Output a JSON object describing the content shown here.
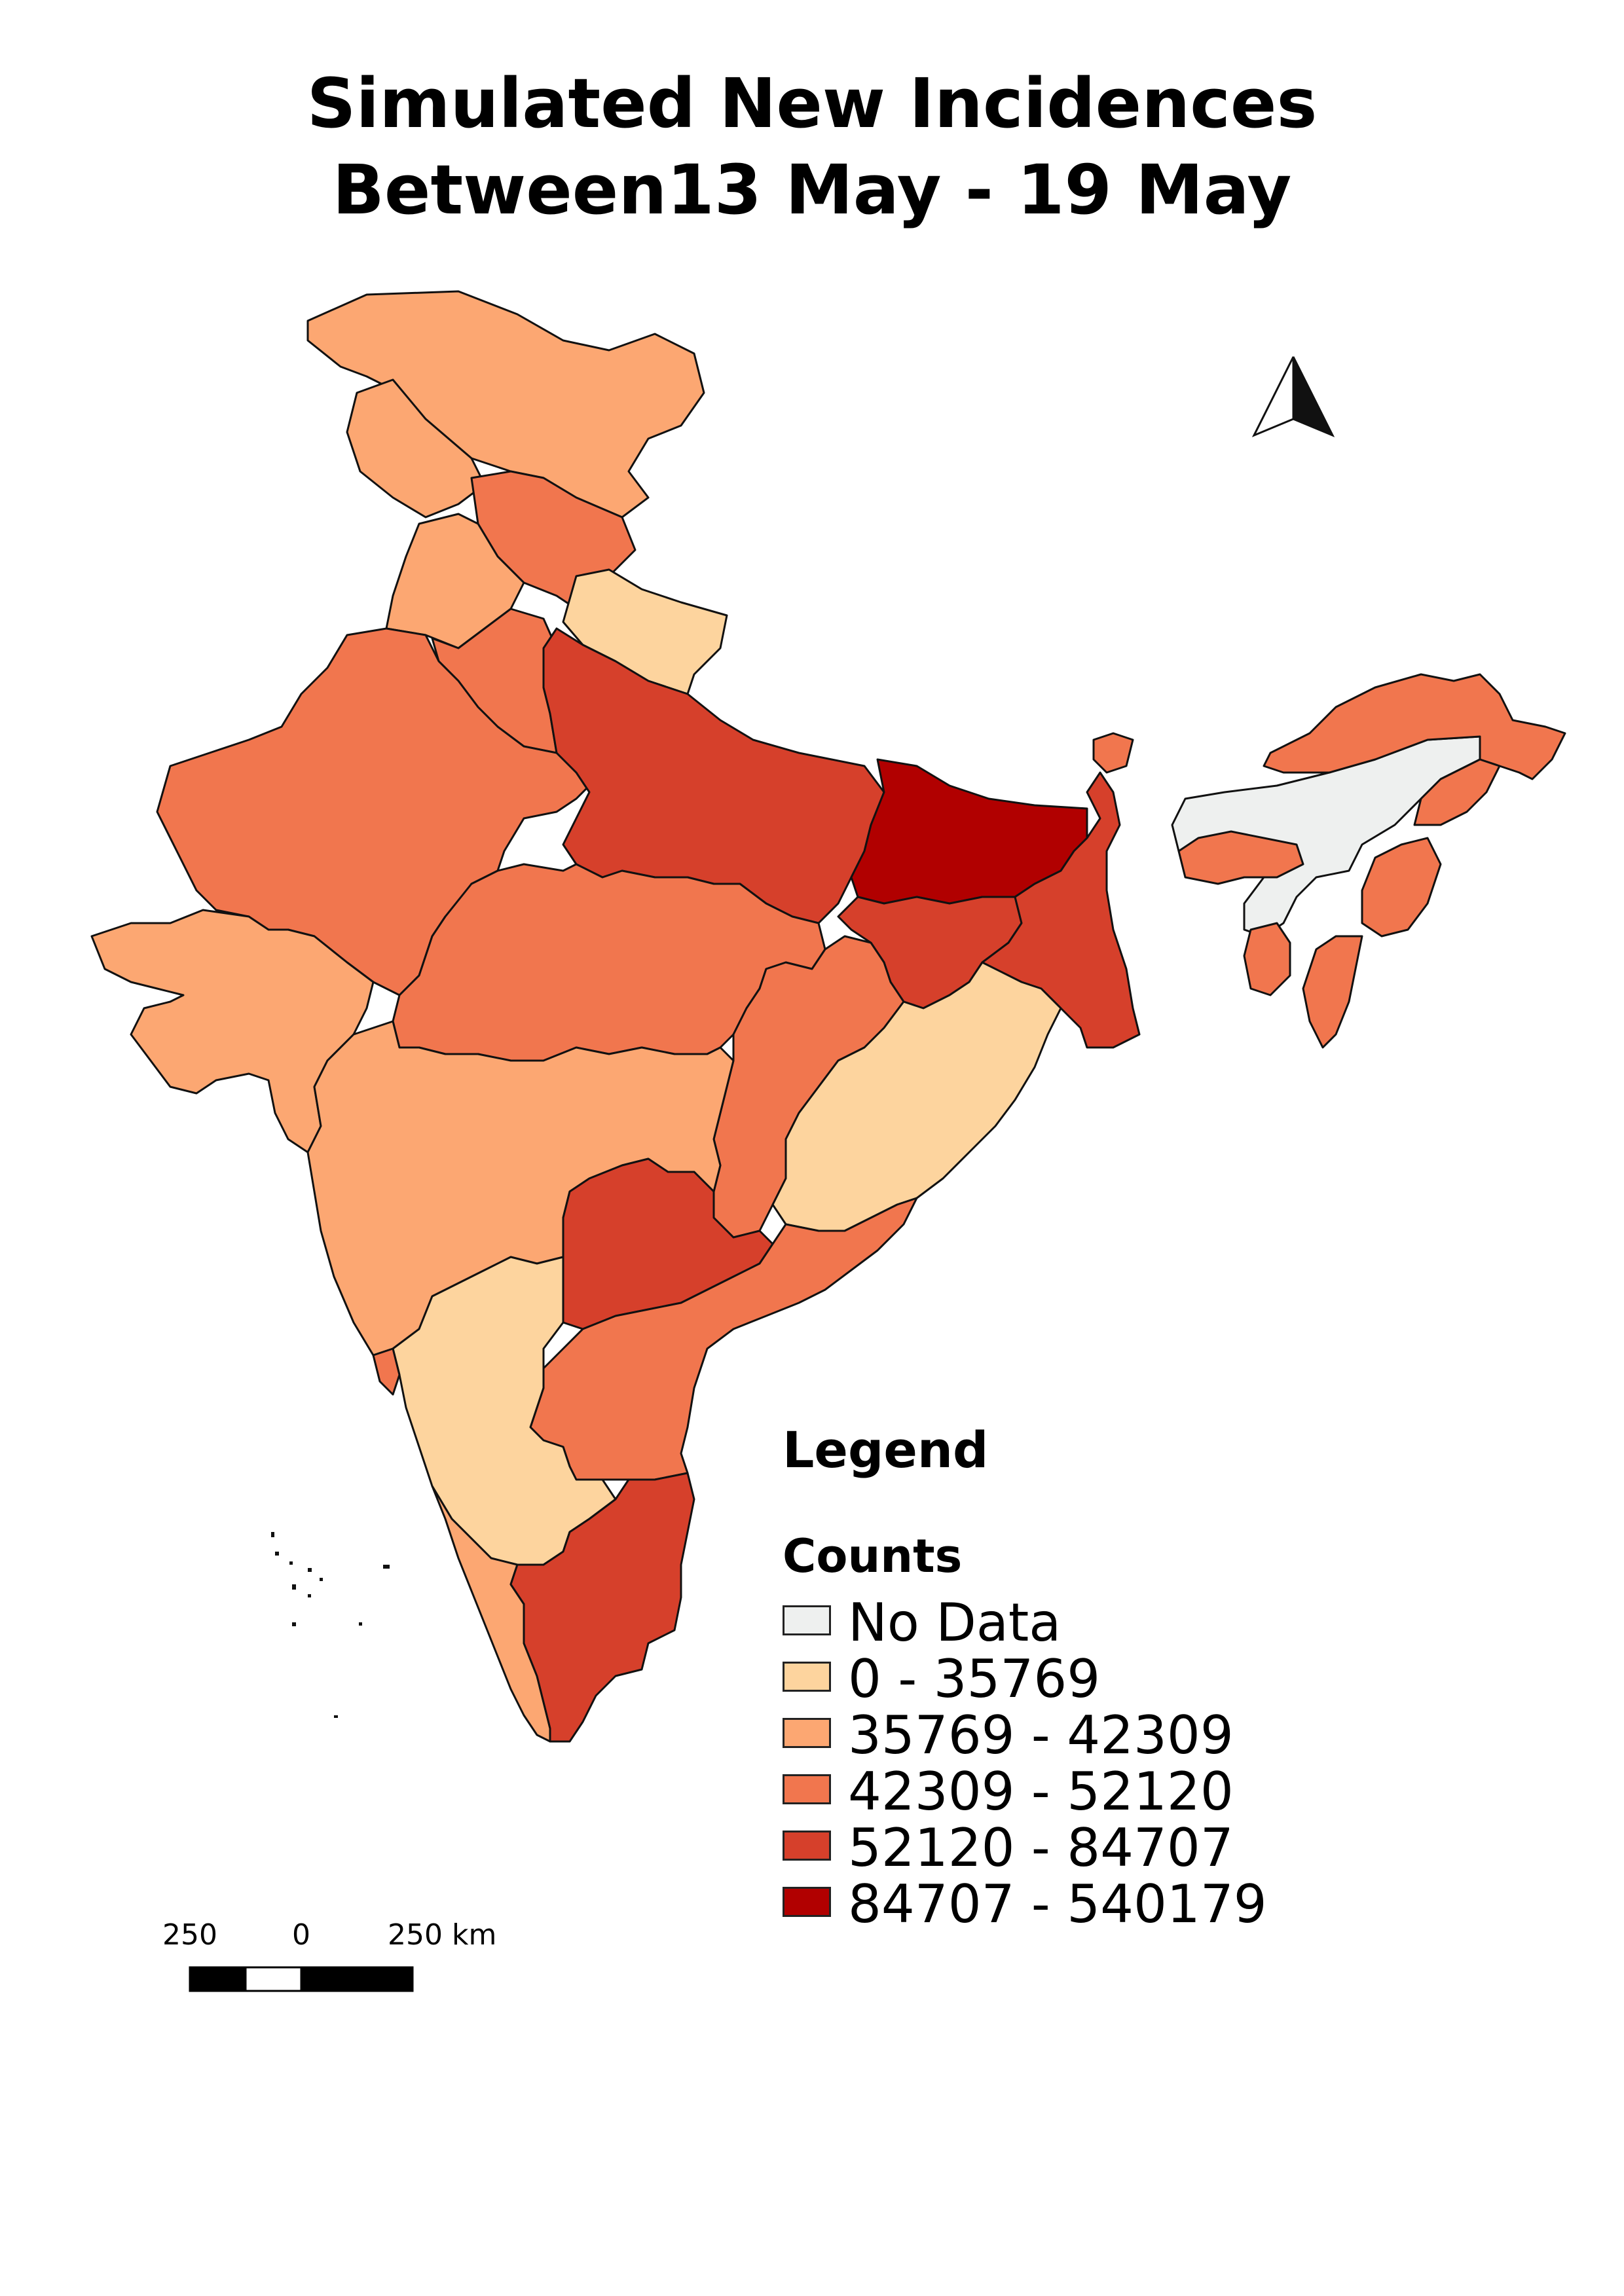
{
  "title": {
    "line1": "Simulated New Incidences",
    "line2": "Between13 May - 19 May"
  },
  "legend": {
    "title": "Legend",
    "subtitle": "Counts",
    "items": [
      {
        "label": "No Data",
        "color": "#eef0ef"
      },
      {
        "label": " 0 - 35769",
        "color": "#fdd49e"
      },
      {
        "label": " 35769 - 42309",
        "color": "#fca772"
      },
      {
        "label": " 42309 - 52120",
        "color": "#f1764e"
      },
      {
        "label": " 52120 - 84707",
        "color": "#d6402b"
      },
      {
        "label": " 84707 - 540179",
        "color": "#b10000"
      }
    ]
  },
  "scale_bar": {
    "labels": [
      "250",
      "0",
      "250 km"
    ]
  },
  "north_arrow": {
    "icon": "north-arrow-icon"
  },
  "regions": [
    {
      "name": "ladakh",
      "class": 2
    },
    {
      "name": "jammu-kashmir",
      "class": 2
    },
    {
      "name": "himachal-pradesh",
      "class": 3
    },
    {
      "name": "punjab",
      "class": 2
    },
    {
      "name": "uttarakhand",
      "class": 1
    },
    {
      "name": "haryana",
      "class": 3
    },
    {
      "name": "rajasthan",
      "class": 3
    },
    {
      "name": "uttar-pradesh",
      "class": 4
    },
    {
      "name": "bihar",
      "class": 5
    },
    {
      "name": "gujarat",
      "class": 2
    },
    {
      "name": "madhya-pradesh",
      "class": 3
    },
    {
      "name": "jharkhand",
      "class": 4
    },
    {
      "name": "west-bengal",
      "class": 4
    },
    {
      "name": "chhattisgarh",
      "class": 3
    },
    {
      "name": "odisha",
      "class": 1
    },
    {
      "name": "maharashtra",
      "class": 2
    },
    {
      "name": "telangana",
      "class": 4
    },
    {
      "name": "andhra-pradesh",
      "class": 3
    },
    {
      "name": "karnataka",
      "class": 1
    },
    {
      "name": "kerala",
      "class": 2
    },
    {
      "name": "tamil-nadu",
      "class": 4
    },
    {
      "name": "goa",
      "class": 3
    },
    {
      "name": "sikkim",
      "class": 3
    },
    {
      "name": "assam",
      "class": 0
    },
    {
      "name": "arunachal-pradesh",
      "class": 3
    },
    {
      "name": "meghalaya",
      "class": 3
    },
    {
      "name": "nagaland",
      "class": 3
    },
    {
      "name": "manipur",
      "class": 3
    },
    {
      "name": "mizoram",
      "class": 3
    },
    {
      "name": "tripura",
      "class": 3
    }
  ]
}
